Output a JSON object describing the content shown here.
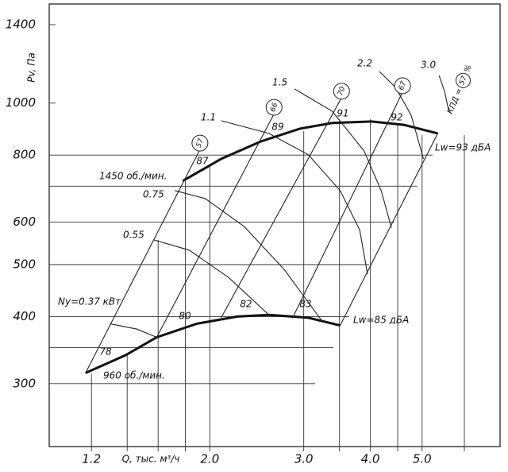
{
  "chart_data": {
    "type": "line",
    "y_label": "Pv, Па",
    "x_label": "Q, тыс. м³/ч",
    "log_x": true,
    "log_y": true,
    "xlim": [
      1.0,
      7.0
    ],
    "ylim": [
      229,
      1530
    ],
    "xticks": [
      1.2,
      {
        "value": 2,
        "label": "2.0"
      },
      {
        "value": 3,
        "label": "3.0"
      },
      {
        "value": 4,
        "label": "4.0"
      },
      {
        "value": 5,
        "label": "5.0"
      }
    ],
    "xminor": [
      1.4,
      1.6,
      1.8,
      3.5,
      4.5,
      6.0
    ],
    "yticks": [
      300,
      400,
      500,
      600,
      800,
      1000,
      1400
    ],
    "yminor": [
      350,
      700
    ],
    "series": [
      {
        "name": "1450 об./мин.",
        "noise": "Lw=93 дБА",
        "x": [
          1.78,
          2.1,
          2.49,
          2.95,
          3.39,
          4.02,
          4.62,
          5.35
        ],
        "values": [
          716,
          787,
          848,
          896,
          918,
          924,
          911,
          878
        ]
      },
      {
        "name": "960 об./мин.",
        "noise": "Lw=85 дБА",
        "x": [
          1.17,
          1.39,
          1.59,
          1.89,
          2.25,
          2.58,
          3.06,
          3.51
        ],
        "values": [
          314,
          339,
          366,
          388,
          400,
          403,
          398,
          385
        ]
      }
    ],
    "power_curves": [
      {
        "name": "Ny=0.37 кВт",
        "x": [
          1.3,
          1.46,
          1.59
        ],
        "values": [
          388,
          379,
          366
        ]
      },
      {
        "name": "0.55",
        "x": [
          1.57,
          1.83,
          2.17,
          2.58
        ],
        "values": [
          556,
          532,
          473,
          403
        ]
      },
      {
        "name": "0.75",
        "x": [
          1.72,
          1.96,
          2.32,
          2.76,
          3.25
        ],
        "values": [
          687,
          664,
          589,
          489,
          392
        ]
      },
      {
        "name": "1.1",
        "x": [
          2.1,
          2.58,
          3.06,
          3.51,
          3.82,
          3.95
        ],
        "values": [
          927,
          878,
          801,
          687,
          580,
          480
        ]
      },
      {
        "name": "1.5",
        "x": [
          2.88,
          3.39,
          3.89,
          4.19,
          4.38
        ],
        "values": [
          1063,
          966,
          815,
          687,
          586
        ]
      },
      {
        "name": "2.2",
        "x": [
          4.16,
          4.46,
          4.77,
          5.03
        ],
        "values": [
          1145,
          1069,
          949,
          787
        ]
      },
      {
        "name": "3.0",
        "x": [
          5.38,
          5.51,
          5.61
        ],
        "values": [
          1126,
          1051,
          966
        ]
      }
    ],
    "efficiency_lines": [
      {
        "low": 78,
        "high": 87,
        "kpd": 57,
        "x": [
          1.17,
          1.91
        ],
        "values": [
          314,
          814
        ]
      },
      {
        "low": 80,
        "high": 89,
        "kpd": 66,
        "x": [
          1.59,
          2.63
        ],
        "values": [
          366,
          949
        ]
      },
      {
        "low": 82,
        "high": 91,
        "kpd": 70,
        "x": [
          2.1,
          3.52
        ],
        "values": [
          398,
          1017
        ]
      },
      {
        "low": 83,
        "high": 92,
        "kpd": 67,
        "x": [
          2.86,
          4.58
        ],
        "values": [
          398,
          1041
        ]
      }
    ],
    "boundary": {
      "x": [
        3.51,
        5.35
      ],
      "values": [
        385,
        878
      ]
    },
    "kpd_prefix": "КПД =",
    "kpd_value": 57,
    "kpd_suffix": "%"
  }
}
